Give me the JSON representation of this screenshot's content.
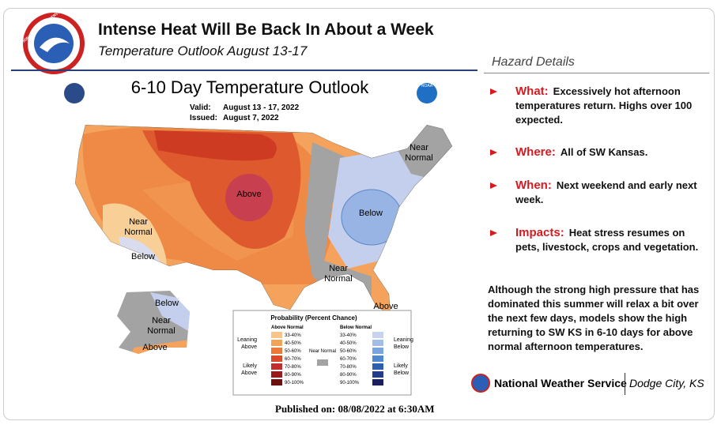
{
  "header": {
    "title": "Intense Heat Will Be Back In About a Week",
    "subtitle": "Temperature Outlook August 13-17",
    "logo_text": "NATIONAL WEATHER SERVICE"
  },
  "map": {
    "title": "6-10 Day Temperature Outlook",
    "valid_label": "Valid:",
    "valid": "August 13 - 17, 2022",
    "issued_label": "Issued:",
    "issued": "August 7, 2022",
    "noaa": "NOAA",
    "regions": [
      "Above",
      "Near Normal",
      "Below",
      "Near Normal",
      "Below",
      "Near Normal",
      "Above",
      "Below",
      "Near Normal",
      "Above"
    ],
    "legend": {
      "title": "Probability (Percent Chance)",
      "above_header": "Above Normal",
      "below_header": "Below Normal",
      "above_bins": [
        "33-40%",
        "40-50%",
        "50-60%",
        "60-70%",
        "70-80%",
        "80-90%",
        "90-100%"
      ],
      "below_bins": [
        "33-40%",
        "40-50%",
        "50-60%",
        "60-70%",
        "70-80%",
        "80-90%",
        "90-100%"
      ],
      "near_normal": "Near Normal",
      "leaning_above": "Leaning Above",
      "likely_above": "Likely Above",
      "leaning_below": "Leaning Below",
      "likely_below": "Likely Below"
    }
  },
  "published": "Published on: 08/08/2022 at 6:30AM",
  "hazard": {
    "heading": "Hazard Details",
    "items": [
      {
        "label": "What:",
        "text": "Excessively hot afternoon temperatures return. Highs over 100 expected."
      },
      {
        "label": "Where:",
        "text": "All of SW Kansas."
      },
      {
        "label": "When:",
        "text": "Next weekend and early next week."
      },
      {
        "label": "Impacts:",
        "text": "Heat stress resumes on pets, livestock, crops and vegetation."
      }
    ],
    "summary": "Although the strong high pressure that has dominated this summer will relax a bit over the next few days,  models show the high returning to SW KS in 6-10 days for above normal afternoon temperatures."
  },
  "footer": {
    "agency": "National Weather Service",
    "office": "Dodge City, KS"
  }
}
